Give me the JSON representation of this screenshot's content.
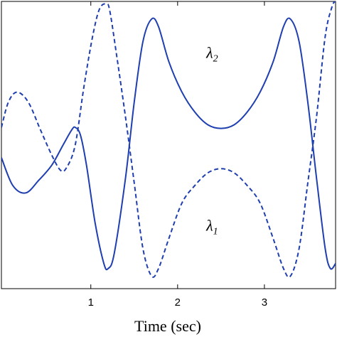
{
  "chart_data": {
    "type": "line",
    "xlabel": "Time (sec)",
    "ylabel": "",
    "title": "",
    "grid": false,
    "xlim": [
      -0.03,
      3.82
    ],
    "ylim": [
      -2.8,
      2.9
    ],
    "x_ticks": [
      "1",
      "2",
      "3"
    ],
    "x_tick_values": [
      1,
      2,
      3
    ],
    "series": [
      {
        "name": "λ2",
        "label_main": "λ",
        "label_sub": "2",
        "style": "solid",
        "color": "#1f3fb0",
        "points": [
          [
            -0.03,
            -0.2
          ],
          [
            0.1,
            -0.75
          ],
          [
            0.25,
            -0.9
          ],
          [
            0.4,
            -0.65
          ],
          [
            0.55,
            -0.35
          ],
          [
            0.68,
            0.05
          ],
          [
            0.78,
            0.35
          ],
          [
            0.82,
            0.4
          ],
          [
            0.88,
            0.25
          ],
          [
            0.95,
            -0.35
          ],
          [
            1.05,
            -1.5
          ],
          [
            1.15,
            -2.3
          ],
          [
            1.2,
            -2.4
          ],
          [
            1.27,
            -2.1
          ],
          [
            1.4,
            -0.6
          ],
          [
            1.5,
            0.9
          ],
          [
            1.6,
            2.1
          ],
          [
            1.7,
            2.55
          ],
          [
            1.78,
            2.4
          ],
          [
            1.9,
            1.7
          ],
          [
            2.05,
            1.1
          ],
          [
            2.2,
            0.7
          ],
          [
            2.35,
            0.45
          ],
          [
            2.5,
            0.38
          ],
          [
            2.65,
            0.45
          ],
          [
            2.8,
            0.7
          ],
          [
            2.95,
            1.1
          ],
          [
            3.1,
            1.7
          ],
          [
            3.22,
            2.4
          ],
          [
            3.3,
            2.55
          ],
          [
            3.4,
            2.1
          ],
          [
            3.5,
            0.9
          ],
          [
            3.6,
            -0.6
          ],
          [
            3.7,
            -2.0
          ],
          [
            3.76,
            -2.4
          ],
          [
            3.82,
            -2.3
          ]
        ]
      },
      {
        "name": "λ1",
        "label_main": "λ",
        "label_sub": "1",
        "style": "dashed",
        "color": "#1f3fb0",
        "points": [
          [
            -0.03,
            0.4
          ],
          [
            0.05,
            0.9
          ],
          [
            0.15,
            1.1
          ],
          [
            0.28,
            0.9
          ],
          [
            0.42,
            0.35
          ],
          [
            0.55,
            -0.15
          ],
          [
            0.65,
            -0.45
          ],
          [
            0.72,
            -0.4
          ],
          [
            0.82,
            0.05
          ],
          [
            0.92,
            1.2
          ],
          [
            1.02,
            2.2
          ],
          [
            1.1,
            2.75
          ],
          [
            1.18,
            2.85
          ],
          [
            1.22,
            2.7
          ],
          [
            1.3,
            1.8
          ],
          [
            1.4,
            0.6
          ],
          [
            1.5,
            -0.7
          ],
          [
            1.6,
            -2.0
          ],
          [
            1.7,
            -2.55
          ],
          [
            1.78,
            -2.4
          ],
          [
            1.9,
            -1.8
          ],
          [
            2.05,
            -1.1
          ],
          [
            2.2,
            -0.75
          ],
          [
            2.35,
            -0.5
          ],
          [
            2.5,
            -0.42
          ],
          [
            2.65,
            -0.5
          ],
          [
            2.8,
            -0.75
          ],
          [
            2.95,
            -1.1
          ],
          [
            3.1,
            -1.8
          ],
          [
            3.22,
            -2.4
          ],
          [
            3.3,
            -2.55
          ],
          [
            3.4,
            -2.0
          ],
          [
            3.5,
            -0.7
          ],
          [
            3.6,
            0.6
          ],
          [
            3.7,
            2.2
          ],
          [
            3.78,
            2.8
          ],
          [
            3.82,
            2.9
          ]
        ]
      }
    ],
    "annotations": [
      {
        "series": "λ2",
        "x": 2.33,
        "y": 1.78
      },
      {
        "series": "λ1",
        "x": 2.33,
        "y": -1.65
      }
    ]
  }
}
